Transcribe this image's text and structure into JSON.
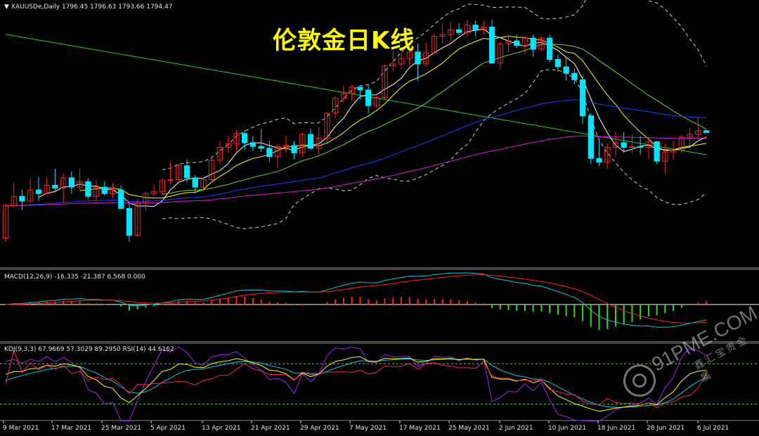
{
  "header": {
    "main_label": "XAUUSDe,Daily",
    "ohlc": "1796.45 1796.63 1793.66 1794.47",
    "title": "伦敦金日K线"
  },
  "panels": {
    "macd_label": "MACD(12,26,9) -16.335 -21.387 6.568 0.000",
    "kdj_label": "KDJ(9,3,3) 67.9669 57.3029 89.2950",
    "rsi_label": "RSI(14) 44.6162"
  },
  "watermark": {
    "main": "91PME.COM",
    "sub": "鑫汇宝贵金属"
  },
  "colors": {
    "bull": "#ff2020",
    "bear": "#00e5ff",
    "ma_fast": "#ffffff",
    "ma_yellow": "#ffff00",
    "ma_green": "#7cd11e",
    "ma_blue": "#1f3bff",
    "ma_magenta": "#d81ad8",
    "trend_green": "#22d022",
    "bollinger": "#cfcfcf",
    "macd_line": "#00c8d8",
    "signal_line": "#ff2020",
    "hist_pos": "#ff2020",
    "hist_neg": "#22e022",
    "k_line": "#ffff00",
    "d_line": "#00c8d8",
    "j_line": "#a020f0",
    "rsi_line": "#ff2060",
    "level_line": "#3fd93f"
  },
  "chart_data": {
    "type": "candlestick",
    "symbol": "XAUUSDe",
    "timeframe": "Daily",
    "title": "伦敦金日K线",
    "x_ticks": [
      "9 Mar 2021",
      "17 Mar 2021",
      "25 Mar 2021",
      "5 Apr 2021",
      "13 Apr 2021",
      "21 Apr 2021",
      "29 Apr 2021",
      "7 May 2021",
      "17 May 2021",
      "25 May 2021",
      "2 Jun 2021",
      "10 Jun 2021",
      "18 Jun 2021",
      "28 Jun 2021",
      "6 Jul 2021"
    ],
    "candles": [
      {
        "o": 1680,
        "h": 1718,
        "l": 1676,
        "c": 1715
      },
      {
        "o": 1715,
        "h": 1740,
        "l": 1713,
        "c": 1725
      },
      {
        "o": 1725,
        "h": 1732,
        "l": 1710,
        "c": 1720
      },
      {
        "o": 1720,
        "h": 1745,
        "l": 1718,
        "c": 1732
      },
      {
        "o": 1732,
        "h": 1746,
        "l": 1720,
        "c": 1728
      },
      {
        "o": 1728,
        "h": 1745,
        "l": 1726,
        "c": 1737
      },
      {
        "o": 1737,
        "h": 1755,
        "l": 1731,
        "c": 1734
      },
      {
        "o": 1734,
        "h": 1750,
        "l": 1718,
        "c": 1745
      },
      {
        "o": 1745,
        "h": 1752,
        "l": 1728,
        "c": 1735
      },
      {
        "o": 1735,
        "h": 1755,
        "l": 1732,
        "c": 1741
      },
      {
        "o": 1741,
        "h": 1745,
        "l": 1722,
        "c": 1725
      },
      {
        "o": 1725,
        "h": 1742,
        "l": 1720,
        "c": 1735
      },
      {
        "o": 1735,
        "h": 1741,
        "l": 1726,
        "c": 1728
      },
      {
        "o": 1728,
        "h": 1740,
        "l": 1723,
        "c": 1732
      },
      {
        "o": 1732,
        "h": 1737,
        "l": 1712,
        "c": 1712
      },
      {
        "o": 1712,
        "h": 1718,
        "l": 1676,
        "c": 1683
      },
      {
        "o": 1683,
        "h": 1722,
        "l": 1681,
        "c": 1718
      },
      {
        "o": 1718,
        "h": 1730,
        "l": 1710,
        "c": 1728
      },
      {
        "o": 1728,
        "h": 1738,
        "l": 1725,
        "c": 1730
      },
      {
        "o": 1730,
        "h": 1745,
        "l": 1727,
        "c": 1742
      },
      {
        "o": 1742,
        "h": 1762,
        "l": 1738,
        "c": 1743
      },
      {
        "o": 1743,
        "h": 1760,
        "l": 1740,
        "c": 1758
      },
      {
        "o": 1758,
        "h": 1765,
        "l": 1740,
        "c": 1745
      },
      {
        "o": 1745,
        "h": 1748,
        "l": 1728,
        "c": 1735
      },
      {
        "o": 1735,
        "h": 1746,
        "l": 1730,
        "c": 1743
      },
      {
        "o": 1743,
        "h": 1769,
        "l": 1740,
        "c": 1764
      },
      {
        "o": 1764,
        "h": 1785,
        "l": 1760,
        "c": 1778
      },
      {
        "o": 1778,
        "h": 1790,
        "l": 1772,
        "c": 1782
      },
      {
        "o": 1782,
        "h": 1797,
        "l": 1774,
        "c": 1793
      },
      {
        "o": 1793,
        "h": 1797,
        "l": 1775,
        "c": 1783
      },
      {
        "o": 1783,
        "h": 1790,
        "l": 1774,
        "c": 1779
      },
      {
        "o": 1779,
        "h": 1798,
        "l": 1773,
        "c": 1777
      },
      {
        "o": 1777,
        "h": 1785,
        "l": 1762,
        "c": 1768
      },
      {
        "o": 1768,
        "h": 1782,
        "l": 1756,
        "c": 1779
      },
      {
        "o": 1779,
        "h": 1790,
        "l": 1772,
        "c": 1780
      },
      {
        "o": 1780,
        "h": 1785,
        "l": 1765,
        "c": 1772
      },
      {
        "o": 1772,
        "h": 1794,
        "l": 1768,
        "c": 1792
      },
      {
        "o": 1792,
        "h": 1798,
        "l": 1775,
        "c": 1777
      },
      {
        "o": 1777,
        "h": 1800,
        "l": 1770,
        "c": 1788
      },
      {
        "o": 1788,
        "h": 1815,
        "l": 1783,
        "c": 1815
      },
      {
        "o": 1815,
        "h": 1833,
        "l": 1809,
        "c": 1831
      },
      {
        "o": 1831,
        "h": 1845,
        "l": 1826,
        "c": 1836
      },
      {
        "o": 1836,
        "h": 1846,
        "l": 1828,
        "c": 1843
      },
      {
        "o": 1843,
        "h": 1845,
        "l": 1830,
        "c": 1840
      },
      {
        "o": 1840,
        "h": 1846,
        "l": 1815,
        "c": 1823
      },
      {
        "o": 1823,
        "h": 1836,
        "l": 1820,
        "c": 1832
      },
      {
        "o": 1832,
        "h": 1868,
        "l": 1830,
        "c": 1866
      },
      {
        "o": 1866,
        "h": 1882,
        "l": 1860,
        "c": 1868
      },
      {
        "o": 1868,
        "h": 1880,
        "l": 1862,
        "c": 1874
      },
      {
        "o": 1874,
        "h": 1889,
        "l": 1866,
        "c": 1881
      },
      {
        "o": 1881,
        "h": 1890,
        "l": 1850,
        "c": 1868
      },
      {
        "o": 1868,
        "h": 1891,
        "l": 1866,
        "c": 1880
      },
      {
        "o": 1880,
        "h": 1902,
        "l": 1878,
        "c": 1898
      },
      {
        "o": 1898,
        "h": 1912,
        "l": 1890,
        "c": 1900
      },
      {
        "o": 1900,
        "h": 1914,
        "l": 1893,
        "c": 1905
      },
      {
        "o": 1905,
        "h": 1912,
        "l": 1899,
        "c": 1902
      },
      {
        "o": 1902,
        "h": 1916,
        "l": 1898,
        "c": 1910
      },
      {
        "o": 1910,
        "h": 1915,
        "l": 1898,
        "c": 1905
      },
      {
        "o": 1905,
        "h": 1915,
        "l": 1900,
        "c": 1908
      },
      {
        "o": 1908,
        "h": 1916,
        "l": 1870,
        "c": 1869
      },
      {
        "o": 1869,
        "h": 1891,
        "l": 1862,
        "c": 1890
      },
      {
        "o": 1890,
        "h": 1900,
        "l": 1881,
        "c": 1893
      },
      {
        "o": 1893,
        "h": 1900,
        "l": 1885,
        "c": 1888
      },
      {
        "o": 1888,
        "h": 1898,
        "l": 1878,
        "c": 1896
      },
      {
        "o": 1896,
        "h": 1900,
        "l": 1876,
        "c": 1884
      },
      {
        "o": 1884,
        "h": 1898,
        "l": 1882,
        "c": 1896
      },
      {
        "o": 1896,
        "h": 1900,
        "l": 1870,
        "c": 1873
      },
      {
        "o": 1873,
        "h": 1878,
        "l": 1860,
        "c": 1865
      },
      {
        "o": 1865,
        "h": 1875,
        "l": 1850,
        "c": 1858
      },
      {
        "o": 1858,
        "h": 1863,
        "l": 1846,
        "c": 1851
      },
      {
        "o": 1851,
        "h": 1855,
        "l": 1803,
        "c": 1812
      },
      {
        "o": 1812,
        "h": 1815,
        "l": 1760,
        "c": 1766
      },
      {
        "o": 1766,
        "h": 1785,
        "l": 1758,
        "c": 1762
      },
      {
        "o": 1762,
        "h": 1782,
        "l": 1755,
        "c": 1778
      },
      {
        "o": 1778,
        "h": 1795,
        "l": 1768,
        "c": 1783
      },
      {
        "o": 1783,
        "h": 1795,
        "l": 1772,
        "c": 1778
      },
      {
        "o": 1778,
        "h": 1792,
        "l": 1772,
        "c": 1779
      },
      {
        "o": 1779,
        "h": 1790,
        "l": 1770,
        "c": 1778
      },
      {
        "o": 1778,
        "h": 1787,
        "l": 1765,
        "c": 1784
      },
      {
        "o": 1784,
        "h": 1785,
        "l": 1760,
        "c": 1763
      },
      {
        "o": 1763,
        "h": 1782,
        "l": 1750,
        "c": 1773
      },
      {
        "o": 1773,
        "h": 1785,
        "l": 1765,
        "c": 1775
      },
      {
        "o": 1775,
        "h": 1792,
        "l": 1772,
        "c": 1789
      },
      {
        "o": 1789,
        "h": 1799,
        "l": 1780,
        "c": 1792
      },
      {
        "o": 1792,
        "h": 1810,
        "l": 1787,
        "c": 1796
      },
      {
        "o": 1796,
        "h": 1797,
        "l": 1794,
        "c": 1794
      }
    ],
    "indicators": [
      "MA",
      "Bollinger",
      "MACD(12,26,9)",
      "KDJ(9,3,3)",
      "RSI(14)"
    ]
  }
}
